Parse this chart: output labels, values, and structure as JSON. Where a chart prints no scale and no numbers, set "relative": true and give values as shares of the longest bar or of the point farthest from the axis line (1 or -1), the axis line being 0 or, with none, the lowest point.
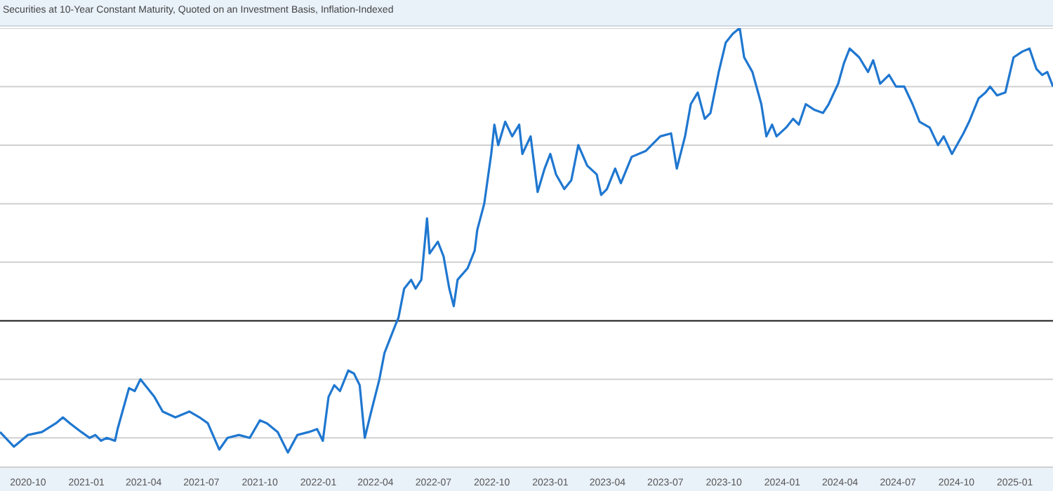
{
  "chart_data": {
    "type": "line",
    "title": "Securities at 10-Year Constant Maturity, Quoted on an Investment Basis, Inflation-Indexed",
    "relative": true,
    "grid": "y",
    "marker": "none",
    "line_style": "solid",
    "xlim": [
      "2020-08-18",
      "2025-03-02"
    ],
    "xticks": [
      "2020-10",
      "2021-01",
      "2021-04",
      "2021-07",
      "2021-10",
      "2022-01",
      "2022-04",
      "2022-07",
      "2022-10",
      "2023-01",
      "2023-04",
      "2023-07",
      "2023-10",
      "2024-01",
      "2024-04",
      "2024-07",
      "2024-10",
      "2025-01"
    ],
    "x": [
      "2020-08-18",
      "2020-09-09",
      "2020-10-01",
      "2020-10-23",
      "2020-11-14",
      "2020-11-25",
      "2020-12-06",
      "2020-12-24",
      "2021-01-06",
      "2021-01-15",
      "2021-01-24",
      "2021-02-02",
      "2021-02-15",
      "2021-02-19",
      "2021-02-28",
      "2021-03-09",
      "2021-03-18",
      "2021-03-27",
      "2021-04-18",
      "2021-05-01",
      "2021-05-21",
      "2021-06-12",
      "2021-06-28",
      "2021-07-11",
      "2021-07-29",
      "2021-08-11",
      "2021-08-29",
      "2021-09-15",
      "2021-10-01",
      "2021-10-12",
      "2021-10-29",
      "2021-11-14",
      "2021-11-29",
      "2021-12-17",
      "2021-12-30",
      "2022-01-08",
      "2022-01-17",
      "2022-01-26",
      "2022-02-04",
      "2022-02-17",
      "2022-02-26",
      "2022-03-07",
      "2022-03-15",
      "2022-03-24",
      "2022-04-07",
      "2022-04-15",
      "2022-04-24",
      "2022-05-03",
      "2022-05-07",
      "2022-05-16",
      "2022-05-27",
      "2022-06-03",
      "2022-06-12",
      "2022-06-21",
      "2022-06-25",
      "2022-07-08",
      "2022-07-17",
      "2022-07-26",
      "2022-08-02",
      "2022-08-08",
      "2022-08-24",
      "2022-09-04",
      "2022-09-08",
      "2022-09-19",
      "2022-09-30",
      "2022-10-05",
      "2022-10-11",
      "2022-10-22",
      "2022-11-02",
      "2022-11-13",
      "2022-11-18",
      "2022-12-01",
      "2022-12-12",
      "2022-12-23",
      "2023-01-01",
      "2023-01-10",
      "2023-01-23",
      "2023-02-03",
      "2023-02-14",
      "2023-02-28",
      "2023-03-15",
      "2023-03-22",
      "2023-03-31",
      "2023-04-13",
      "2023-04-22",
      "2023-05-09",
      "2023-05-31",
      "2023-06-23",
      "2023-07-10",
      "2023-07-19",
      "2023-08-01",
      "2023-08-10",
      "2023-08-21",
      "2023-09-01",
      "2023-09-10",
      "2023-09-23",
      "2023-10-04",
      "2023-10-15",
      "2023-10-26",
      "2023-11-02",
      "2023-11-15",
      "2023-11-29",
      "2023-12-07",
      "2023-12-16",
      "2023-12-23",
      "2024-01-07",
      "2024-01-18",
      "2024-01-27",
      "2024-02-07",
      "2024-02-21",
      "2024-03-05",
      "2024-03-14",
      "2024-03-29",
      "2024-04-07",
      "2024-04-16",
      "2024-05-01",
      "2024-05-15",
      "2024-05-23",
      "2024-06-03",
      "2024-06-17",
      "2024-06-28",
      "2024-07-11",
      "2024-07-24",
      "2024-08-04",
      "2024-08-20",
      "2024-09-02",
      "2024-09-11",
      "2024-09-24",
      "2024-10-12",
      "2024-10-21",
      "2024-11-05",
      "2024-11-16",
      "2024-11-23",
      "2024-12-04",
      "2024-12-17",
      "2024-12-30",
      "2025-01-13",
      "2025-01-24",
      "2025-02-04",
      "2025-02-13",
      "2025-02-21",
      "2025-03-02"
    ],
    "series": [
      {
        "color": "#1f77d0",
        "values": [
          -0.38,
          -0.43,
          -0.39,
          -0.38,
          -0.35,
          -0.33,
          -0.35,
          -0.38,
          -0.4,
          -0.39,
          -0.41,
          -0.4,
          -0.41,
          -0.37,
          -0.3,
          -0.23,
          -0.24,
          -0.2,
          -0.26,
          -0.31,
          -0.33,
          -0.31,
          -0.33,
          -0.35,
          -0.44,
          -0.4,
          -0.39,
          -0.4,
          -0.34,
          -0.35,
          -0.38,
          -0.45,
          -0.39,
          -0.38,
          -0.37,
          -0.41,
          -0.26,
          -0.22,
          -0.24,
          -0.17,
          -0.18,
          -0.22,
          -0.4,
          -0.32,
          -0.2,
          -0.11,
          -0.06,
          -0.01,
          0.01,
          0.11,
          0.14,
          0.11,
          0.14,
          0.35,
          0.23,
          0.27,
          0.22,
          0.11,
          0.05,
          0.14,
          0.18,
          0.24,
          0.31,
          0.4,
          0.57,
          0.67,
          0.6,
          0.68,
          0.63,
          0.67,
          0.57,
          0.63,
          0.44,
          0.52,
          0.57,
          0.5,
          0.45,
          0.48,
          0.6,
          0.53,
          0.5,
          0.43,
          0.45,
          0.52,
          0.47,
          0.56,
          0.58,
          0.63,
          0.64,
          0.52,
          0.63,
          0.74,
          0.78,
          0.69,
          0.71,
          0.85,
          0.95,
          0.98,
          1,
          0.9,
          0.85,
          0.74,
          0.63,
          0.67,
          0.63,
          0.66,
          0.69,
          0.67,
          0.74,
          0.72,
          0.71,
          0.74,
          0.81,
          0.88,
          0.93,
          0.9,
          0.85,
          0.89,
          0.81,
          0.84,
          0.8,
          0.8,
          0.74,
          0.68,
          0.66,
          0.6,
          0.63,
          0.57,
          0.64,
          0.68,
          0.76,
          0.78,
          0.8,
          0.77,
          0.78,
          0.9,
          0.92,
          0.93,
          0.86,
          0.84,
          0.85,
          0.8
        ]
      }
    ]
  }
}
